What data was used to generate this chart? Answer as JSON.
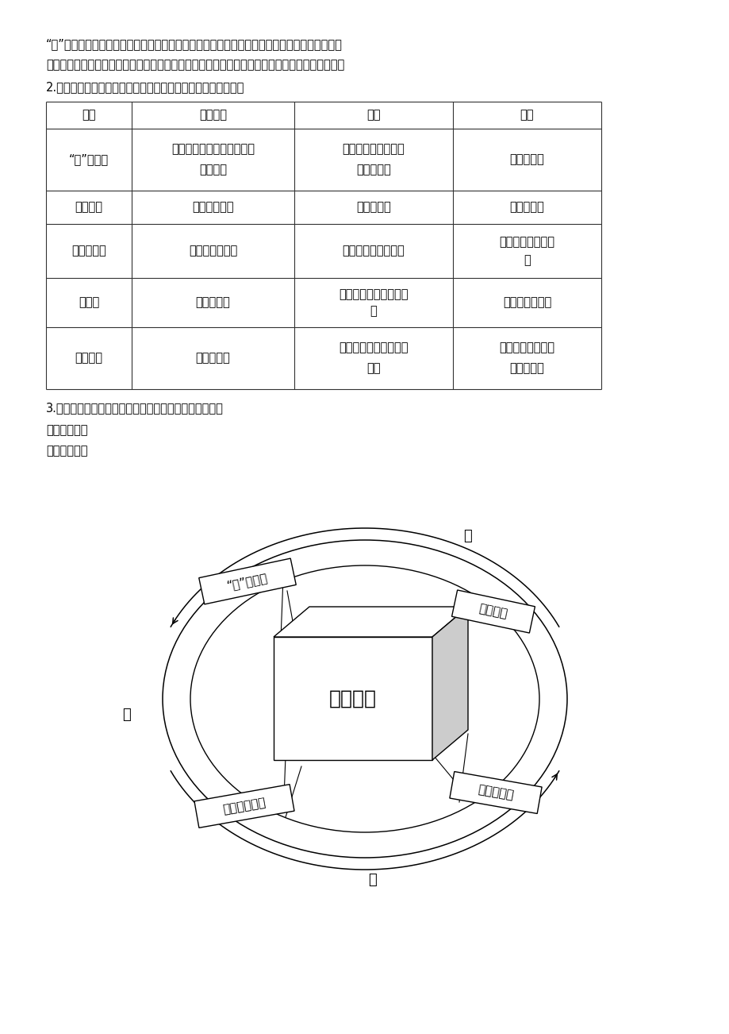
{
  "bg_color": "#ffffff",
  "text_color": "#000000",
  "intro_text1": "“我”和老余（第三自然段）、守山护林的老人（第十二自然段）、瑶族老人（第十三自然段）、",
  "intro_text2": "一群哈尼小姑娘（第二十四自然段）、解放军战士（第三十二自然段）、梨花（第三十五自然段）",
  "question2": "2.这些人都有什么故事呢？依据表格要求在文中找出相关内容。",
  "table_headers": [
    "人物",
    "所做好事",
    "目的",
    "时间"
  ],
  "table_rows": [
    [
      "“我”和老余",
      "修葪小茗屋、给房顶加草、\n抜排水沟",
      "向哈尼小姑娘学习，\n为群众着想",
      "第二天早上"
    ],
    [
      "瑶族老人",
      "专门送粮食来",
      "方便过路人",
      "前一天晚上"
    ],
    [
      "哈尼小姑娘",
      "常来照管小茗屋",
      "向解放军和姑姑学习",
      "前几年，姑姑出嫁\n后"
    ],
    [
      "解放军",
      "建造小茗屋",
      "向雷锋学习，方便过路\n人",
      "十多年前路过时"
    ],
    [
      "梨花姑娘",
      "照料小茗屋",
      "向解放军学习，方便过\n路人",
      "解放军盖小茗屋后\n至她出嫁前"
    ]
  ],
  "question3": "3.结合表格内容，说说他们有哪些值得我们学习的地方？",
  "section7": "七、布置作业",
  "section8": "八、板书设计",
  "diagram": {
    "center_text": "助人为乐",
    "top_label": "传",
    "left_label": "爱",
    "bottom_label": "递",
    "top_right_card": "瑶族老人",
    "top_left_card": "“我”和老余",
    "bottom_left_card": "解放军、梨花",
    "bottom_right_card": "哈尼小姑娘"
  }
}
